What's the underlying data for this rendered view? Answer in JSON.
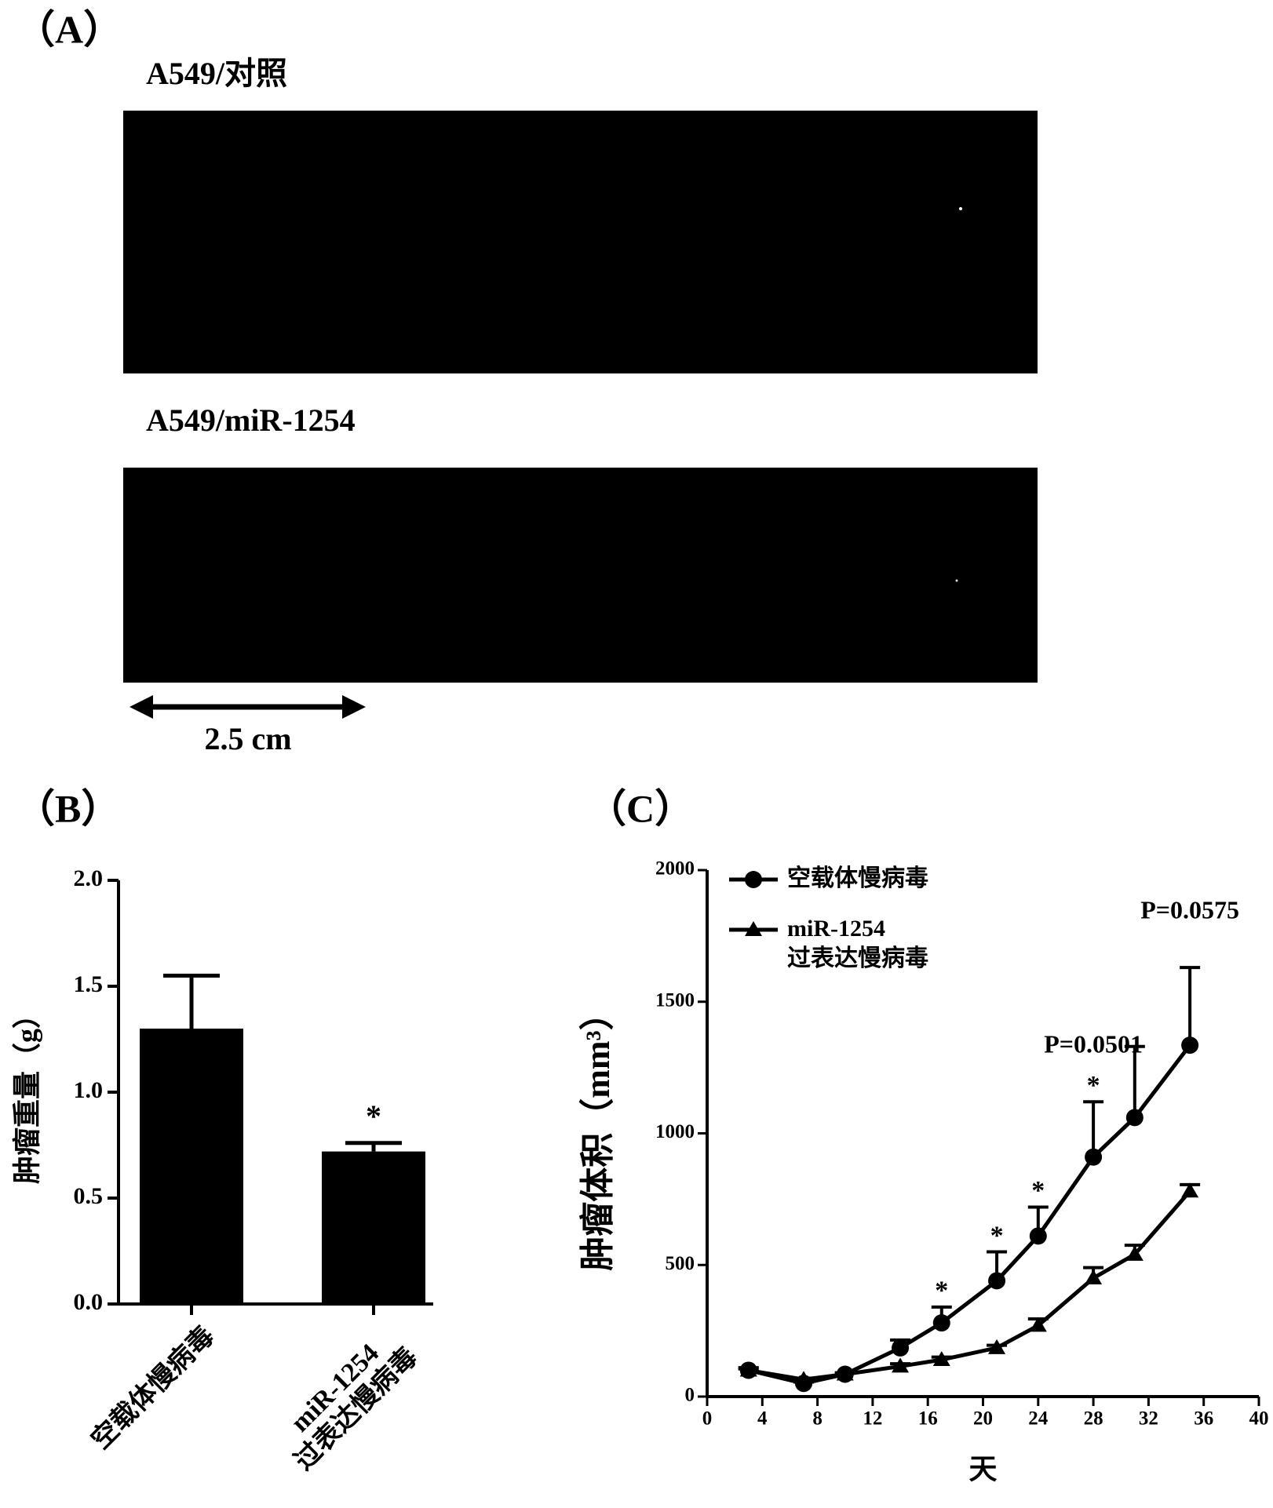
{
  "panel_a": {
    "label": "（A）",
    "images": [
      {
        "caption": "A549/对照"
      },
      {
        "caption": "A549/miR-1254"
      }
    ],
    "scale_bar": "2.5 cm"
  },
  "chart_data": [
    {
      "type": "bar",
      "panel": "（B）",
      "ylabel": "肿瘤重量（g）",
      "categories": [
        "空载体慢病毒",
        "miR-1254\n过表达慢病毒"
      ],
      "values": [
        1.3,
        0.72
      ],
      "errors": [
        0.25,
        0.04
      ],
      "color": "#000000",
      "ylim": [
        0,
        2
      ],
      "yticks": [
        {
          "value": 0,
          "label": "0.0"
        },
        {
          "value": 0.5,
          "label": "0.5"
        },
        {
          "value": 1,
          "label": "1.0"
        },
        {
          "value": 1.5,
          "label": "1.5"
        },
        {
          "value": 2,
          "label": "2.0"
        }
      ],
      "annotations": [
        {
          "text": "*",
          "category": "miR-1254\n过表达慢病毒"
        }
      ]
    },
    {
      "type": "line",
      "panel": "（C）",
      "xlabel": "天",
      "ylabel": "肿瘤体积（mm³）",
      "x": [
        3,
        7,
        10,
        14,
        17,
        21,
        24,
        28,
        31,
        35
      ],
      "series": [
        {
          "name": "空载体慢病毒",
          "color": "#000000",
          "marker": "circle",
          "values": [
            100,
            50,
            85,
            185,
            280,
            440,
            610,
            910,
            1060,
            1335
          ],
          "errors": [
            10,
            5,
            5,
            30,
            60,
            110,
            110,
            210,
            270,
            295
          ]
        },
        {
          "name": "miR-1254\n过表达慢病毒",
          "color": "#000000",
          "marker": "triangle",
          "values": [
            100,
            65,
            85,
            115,
            140,
            185,
            270,
            450,
            540,
            780
          ],
          "errors": [
            5,
            5,
            5,
            10,
            10,
            10,
            25,
            40,
            35,
            25
          ]
        }
      ],
      "xlim": [
        0,
        40
      ],
      "xticks": [
        0,
        4,
        8,
        12,
        16,
        20,
        24,
        28,
        32,
        36,
        40
      ],
      "ylim": [
        0,
        2000
      ],
      "yticks": [
        0,
        500,
        1000,
        1500,
        2000
      ],
      "legend": "upper left",
      "annotations": [
        {
          "text": "*",
          "x": 17
        },
        {
          "text": "*",
          "x": 21
        },
        {
          "text": "*",
          "x": 24
        },
        {
          "text": "*",
          "x": 28
        },
        {
          "text": "P=0.0501",
          "x": 28
        },
        {
          "text": "P=0.0575",
          "x": 35
        }
      ]
    }
  ]
}
